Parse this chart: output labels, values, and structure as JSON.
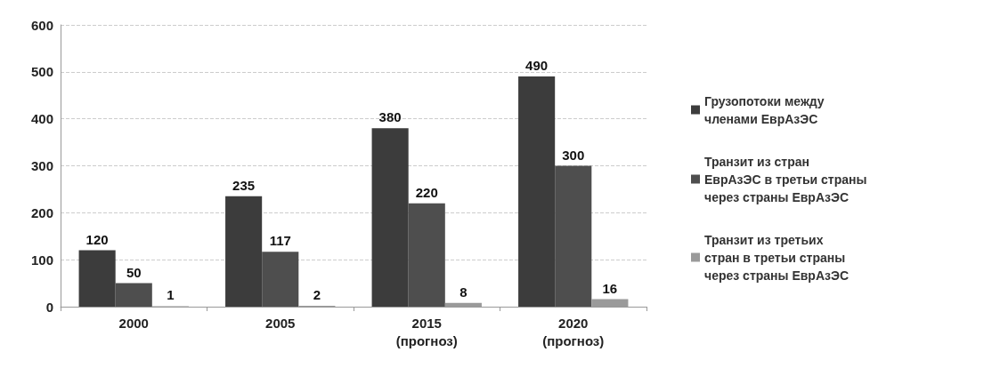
{
  "chart_data": {
    "type": "bar",
    "categories": [
      "2000",
      "2005",
      "2015\n(прогноз)",
      "2020\n(прогноз)"
    ],
    "series": [
      {
        "name": "Грузопотоки между членами ЕврАзЭС",
        "color": "#3c3c3c",
        "values": [
          120,
          235,
          380,
          490
        ]
      },
      {
        "name": "Транзит из стран ЕврАзЭС в третьи страны через страны ЕврАзЭС",
        "color": "#4e4e4e",
        "values": [
          50,
          117,
          220,
          300
        ]
      },
      {
        "name": "Транзит из третьих стран в третьи страны через страны ЕврАзЭС",
        "color": "#9a9a9a",
        "values": [
          1,
          2,
          8,
          16
        ]
      }
    ],
    "ylim": [
      0,
      600
    ],
    "yticks": [
      0,
      100,
      200,
      300,
      400,
      500,
      600
    ],
    "grid": "y",
    "legend": "right",
    "data_labels": true
  }
}
